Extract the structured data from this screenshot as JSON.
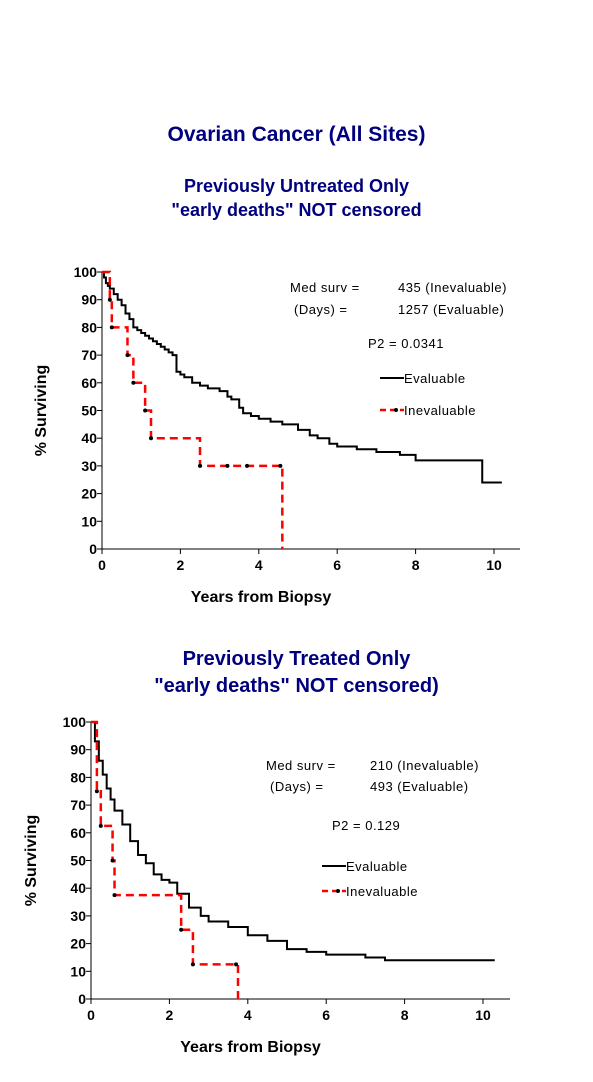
{
  "page": {
    "main_title": "Ovarian Cancer (All Sites)"
  },
  "chart_data": [
    {
      "type": "line",
      "title_lines": [
        "Previously Untreated Only",
        "\"early deaths\" NOT censored"
      ],
      "xlabel": "Years from Biopsy",
      "ylabel": "% Surviving",
      "xlim": [
        0,
        11
      ],
      "ylim": [
        0,
        100
      ],
      "xticks": [
        0,
        2,
        4,
        6,
        8,
        10
      ],
      "yticks": [
        0,
        10,
        20,
        30,
        40,
        50,
        60,
        70,
        80,
        90,
        100
      ],
      "annotations": {
        "med_surv_label": "Med surv =",
        "med_surv_value": "435 (Inevaluable)",
        "days_label": "(Days)   =",
        "days_value": "1257 (Evaluable)",
        "p2": "P2 = 0.0341"
      },
      "legend_position": "right",
      "series": [
        {
          "name": "Evaluable",
          "color": "#000000",
          "dashed": false,
          "censor_marks": false,
          "x": [
            0,
            0.05,
            0.1,
            0.15,
            0.2,
            0.3,
            0.4,
            0.5,
            0.6,
            0.7,
            0.8,
            0.9,
            1.0,
            1.1,
            1.2,
            1.3,
            1.4,
            1.5,
            1.6,
            1.7,
            1.8,
            1.9,
            2.0,
            2.1,
            2.3,
            2.5,
            2.7,
            3.0,
            3.2,
            3.3,
            3.5,
            3.6,
            3.8,
            4.0,
            4.3,
            4.6,
            5.0,
            5.3,
            5.5,
            5.8,
            6.0,
            6.5,
            7.0,
            7.6,
            8.0,
            9.0,
            9.7,
            10.2
          ],
          "y": [
            100,
            98,
            96,
            95,
            94,
            92,
            90,
            88,
            85,
            83,
            80,
            79,
            78,
            77,
            76,
            75,
            74,
            73,
            72,
            71,
            70,
            64,
            63,
            62,
            60,
            59,
            58,
            57,
            55,
            54,
            51,
            49,
            48,
            47,
            46,
            45,
            43,
            41,
            40,
            38,
            37,
            36,
            35,
            34,
            32,
            32,
            24,
            24
          ]
        },
        {
          "name": "Inevaluable",
          "color": "#ff0000",
          "dashed": true,
          "censor_marks": true,
          "x": [
            0,
            0.2,
            0.25,
            0.65,
            0.8,
            1.1,
            1.25,
            2.5,
            3.2,
            3.7,
            4.55,
            4.6
          ],
          "y": [
            100,
            90,
            80,
            70,
            60,
            50,
            40,
            30,
            30,
            30,
            30,
            0
          ]
        }
      ]
    },
    {
      "type": "line",
      "title_lines": [
        "Previously Treated Only",
        "\"early deaths\" NOT censored)"
      ],
      "xlabel": "Years from Biopsy",
      "ylabel": "% Surviving",
      "xlim": [
        0,
        10.6
      ],
      "ylim": [
        0,
        100
      ],
      "xticks": [
        0,
        2,
        4,
        6,
        8,
        10
      ],
      "yticks": [
        0,
        10,
        20,
        30,
        40,
        50,
        60,
        70,
        80,
        90,
        100
      ],
      "annotations": {
        "med_surv_label": "Med surv =",
        "med_surv_value": "210 (Inevaluable)",
        "days_label": "(Days)   =",
        "days_value": "493 (Evaluable)",
        "p2": "P2 = 0.129"
      },
      "legend_position": "right",
      "series": [
        {
          "name": "Evaluable",
          "color": "#000000",
          "dashed": false,
          "censor_marks": false,
          "x": [
            0,
            0.1,
            0.2,
            0.3,
            0.4,
            0.5,
            0.6,
            0.8,
            1.0,
            1.2,
            1.4,
            1.6,
            1.8,
            2.0,
            2.2,
            2.5,
            2.8,
            3.0,
            3.5,
            4.0,
            4.5,
            5.0,
            5.5,
            6.0,
            6.5,
            7.0,
            7.5,
            8.0,
            9.0,
            10.3
          ],
          "y": [
            100,
            93,
            86,
            81,
            76,
            72,
            68,
            63,
            57,
            52,
            49,
            45,
            43,
            42,
            38,
            33,
            30,
            28,
            26,
            23,
            21,
            18,
            17,
            16,
            16,
            15,
            14,
            14,
            14,
            14
          ]
        },
        {
          "name": "Inevaluable",
          "color": "#ff0000",
          "dashed": true,
          "censor_marks": true,
          "x": [
            0,
            0.15,
            0.25,
            0.55,
            0.6,
            2.3,
            2.6,
            3.7,
            3.75
          ],
          "y": [
            100,
            75,
            62.5,
            50,
            37.5,
            25,
            12.5,
            12.5,
            0
          ]
        }
      ]
    }
  ]
}
